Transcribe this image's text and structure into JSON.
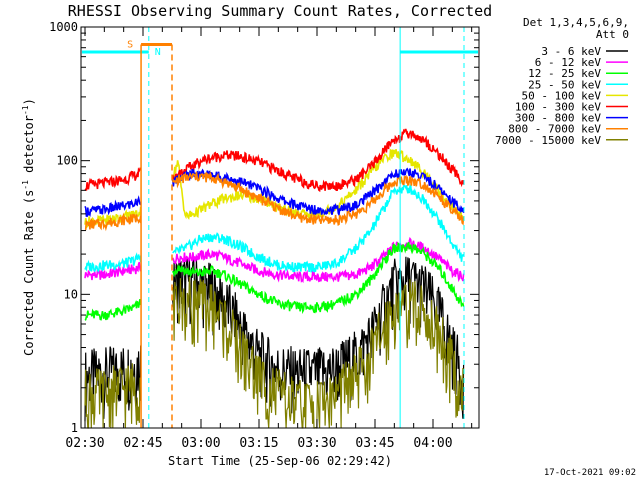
{
  "chart_data": {
    "type": "line",
    "title": "RHESSI Observing Summary Count Rates, Corrected",
    "xlabel": "Start Time (25-Sep-06 02:29:42)",
    "ylabel": "Corrected Count Rate (s⁻¹ detector⁻¹)",
    "ylabel_parts": [
      "Corrected Count Rate (s",
      "-1",
      " detector",
      "-1",
      ")"
    ],
    "y_scale": "log",
    "ylim": [
      1,
      1000
    ],
    "xlim_minutes": [
      0,
      100
    ],
    "x_ticks": [
      {
        "t": 0,
        "label": "02:30"
      },
      {
        "t": 15,
        "label": "02:45"
      },
      {
        "t": 30,
        "label": "03:00"
      },
      {
        "t": 45,
        "label": "03:15"
      },
      {
        "t": 60,
        "label": "03:30"
      },
      {
        "t": 75,
        "label": "03:45"
      },
      {
        "t": 90,
        "label": "04:00"
      }
    ],
    "y_ticks": [
      {
        "v": 1,
        "label": "1"
      },
      {
        "v": 10,
        "label": "10"
      },
      {
        "v": 100,
        "label": "100"
      },
      {
        "v": 1000,
        "label": "1000"
      }
    ],
    "legend_title": [
      "Det 1,3,4,5,6,9,",
      "Att 0"
    ],
    "series": [
      {
        "name": "3 - 6 keV",
        "color": "#000000",
        "x": [
          0,
          5,
          10,
          13,
          14,
          23,
          24,
          26,
          28,
          30,
          33,
          36,
          40,
          45,
          50,
          55,
          60,
          65,
          70,
          74,
          78,
          80,
          84,
          88,
          92,
          95,
          98
        ],
        "y": [
          2.5,
          2.6,
          2.8,
          3,
          3.1,
          12,
          13,
          12.5,
          13,
          12,
          11,
          9,
          6,
          3.5,
          2.8,
          2.6,
          2.6,
          2.8,
          3.5,
          5,
          9,
          12,
          13,
          11,
          7,
          4,
          2.5
        ]
      },
      {
        "name": "6 - 12 keV",
        "color": "#ff00ff",
        "x": [
          0,
          5,
          10,
          13,
          14,
          23,
          24,
          26,
          28,
          30,
          33,
          36,
          40,
          45,
          50,
          55,
          60,
          65,
          70,
          74,
          78,
          80,
          84,
          88,
          92,
          95,
          98
        ],
        "y": [
          14,
          14,
          15,
          15.5,
          16,
          18,
          19,
          19,
          19,
          19.5,
          20,
          19,
          17,
          15,
          14,
          13.5,
          13.5,
          13.5,
          14,
          16,
          20,
          23,
          24,
          22,
          18,
          15,
          13.5
        ]
      },
      {
        "name": "12 - 25 keV",
        "color": "#00ff00",
        "x": [
          0,
          5,
          10,
          13,
          14,
          23,
          24,
          26,
          28,
          30,
          33,
          36,
          40,
          45,
          50,
          55,
          60,
          65,
          70,
          74,
          78,
          80,
          84,
          88,
          92,
          95,
          98
        ],
        "y": [
          7,
          7,
          7.5,
          8,
          8.5,
          15,
          16,
          15,
          14.5,
          14.5,
          15,
          14,
          12,
          10,
          8.5,
          8,
          8,
          8.5,
          10,
          13,
          19,
          22,
          23,
          20,
          15,
          11,
          8
        ]
      },
      {
        "name": "25 - 50 keV",
        "color": "#00ffff",
        "x": [
          0,
          5,
          10,
          13,
          14,
          23,
          24,
          26,
          28,
          30,
          33,
          36,
          40,
          45,
          50,
          55,
          60,
          65,
          70,
          74,
          78,
          80,
          84,
          88,
          92,
          95,
          98
        ],
        "y": [
          16,
          16.5,
          17,
          18,
          19,
          20,
          21,
          22,
          24,
          26,
          27,
          26,
          23,
          19,
          16.5,
          16,
          16,
          17,
          22,
          30,
          48,
          60,
          62,
          50,
          34,
          24,
          18
        ]
      },
      {
        "name": "50 - 100 keV",
        "color": "#e6e600",
        "x": [
          0,
          5,
          10,
          13,
          14,
          23,
          24,
          25,
          26,
          28,
          30,
          33,
          36,
          40,
          45,
          50,
          55,
          60,
          65,
          70,
          74,
          78,
          80,
          84,
          88,
          92,
          95,
          98
        ],
        "y": [
          35,
          36,
          38,
          40,
          41,
          80,
          100,
          60,
          38,
          40,
          43,
          48,
          52,
          55,
          52,
          45,
          40,
          40,
          45,
          60,
          82,
          108,
          115,
          102,
          80,
          57,
          45,
          37
        ]
      },
      {
        "name": "100 - 300 keV",
        "color": "#ff0000",
        "x": [
          0,
          5,
          10,
          13,
          14,
          23,
          24,
          26,
          28,
          30,
          33,
          36,
          40,
          45,
          50,
          55,
          60,
          65,
          70,
          74,
          78,
          80,
          84,
          88,
          92,
          95,
          98
        ],
        "y": [
          65,
          68,
          72,
          78,
          80,
          75,
          80,
          85,
          92,
          100,
          106,
          110,
          108,
          98,
          84,
          72,
          65,
          65,
          72,
          90,
          125,
          145,
          162,
          140,
          108,
          85,
          68
        ]
      },
      {
        "name": "300 - 800 keV",
        "color": "#0000ff",
        "x": [
          0,
          5,
          10,
          13,
          14,
          23,
          24,
          26,
          28,
          30,
          33,
          36,
          40,
          45,
          50,
          55,
          60,
          65,
          70,
          74,
          78,
          80,
          84,
          88,
          92,
          95,
          98
        ],
        "y": [
          42,
          43,
          46,
          48,
          50,
          70,
          75,
          78,
          80,
          80,
          78,
          75,
          70,
          62,
          52,
          46,
          43,
          43,
          46,
          56,
          72,
          80,
          82,
          75,
          60,
          50,
          42
        ]
      },
      {
        "name": "800 - 7000 keV",
        "color": "#ff8000",
        "x": [
          0,
          5,
          10,
          13,
          14,
          23,
          24,
          26,
          28,
          30,
          33,
          36,
          40,
          45,
          50,
          55,
          60,
          65,
          70,
          74,
          78,
          80,
          84,
          88,
          92,
          95,
          98
        ],
        "y": [
          33,
          34,
          36,
          37,
          38,
          68,
          72,
          74,
          76,
          76,
          74,
          70,
          62,
          52,
          44,
          38,
          36,
          36,
          40,
          48,
          62,
          70,
          72,
          66,
          52,
          42,
          35
        ]
      },
      {
        "name": "7000 - 15000 keV",
        "color": "#808000",
        "x": [
          0,
          5,
          10,
          13,
          14,
          23,
          24,
          26,
          28,
          30,
          33,
          36,
          40,
          45,
          50,
          55,
          60,
          65,
          70,
          74,
          78,
          80,
          84,
          88,
          92,
          95,
          98
        ],
        "y": [
          1.8,
          1.8,
          2,
          2.1,
          2.2,
          8,
          9,
          8.5,
          9,
          8.5,
          8,
          6.5,
          4,
          2.4,
          1.8,
          1.5,
          1.5,
          1.8,
          2.4,
          3.5,
          6.5,
          8,
          8.5,
          7.5,
          5,
          3,
          1.8
        ]
      }
    ],
    "annotations": [
      {
        "type": "night",
        "label": "N",
        "t_start": 16.5,
        "t_end": 81.5,
        "level": 650,
        "color": "#00ffff"
      },
      {
        "type": "saa",
        "label": "S",
        "t_start": 14.5,
        "t_end": 22.5,
        "level": 740,
        "color": "#ff8000"
      }
    ],
    "gaps": [
      {
        "t_start": 14.5,
        "t_end": 22.5
      }
    ]
  },
  "footer": {
    "timestamp": "17-Oct-2021 09:02"
  }
}
